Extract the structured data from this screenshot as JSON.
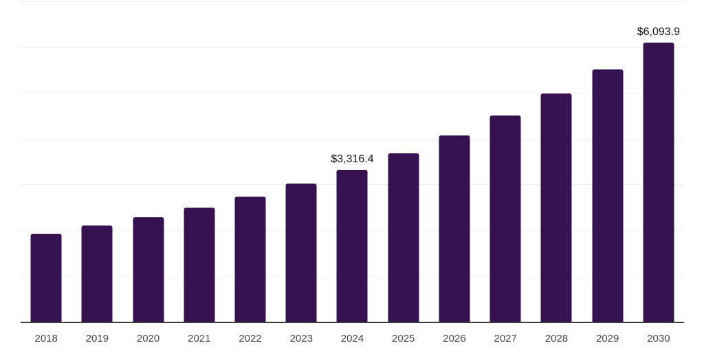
{
  "chart_data": {
    "type": "bar",
    "title": "",
    "xlabel": "",
    "ylabel": "",
    "categories": [
      "2018",
      "2019",
      "2020",
      "2021",
      "2022",
      "2023",
      "2024",
      "2025",
      "2026",
      "2027",
      "2028",
      "2029",
      "2030"
    ],
    "values": [
      1930,
      2100,
      2290,
      2490,
      2730,
      3015,
      3316.4,
      3675,
      4065,
      4500,
      4980,
      5510,
      6093.9
    ],
    "value_labels": {
      "2024": "$3,316.4",
      "2030": "$6,093.9"
    },
    "ylim": [
      0,
      7000
    ],
    "gridline_step": 1000,
    "grid": true,
    "legend": false,
    "colors": {
      "bar": "#371250",
      "axis_line": "#3a3a3a",
      "gridline": "#f0f0f0",
      "x_label": "#454545",
      "data_label": "#141414",
      "background": "#ffffff"
    }
  }
}
